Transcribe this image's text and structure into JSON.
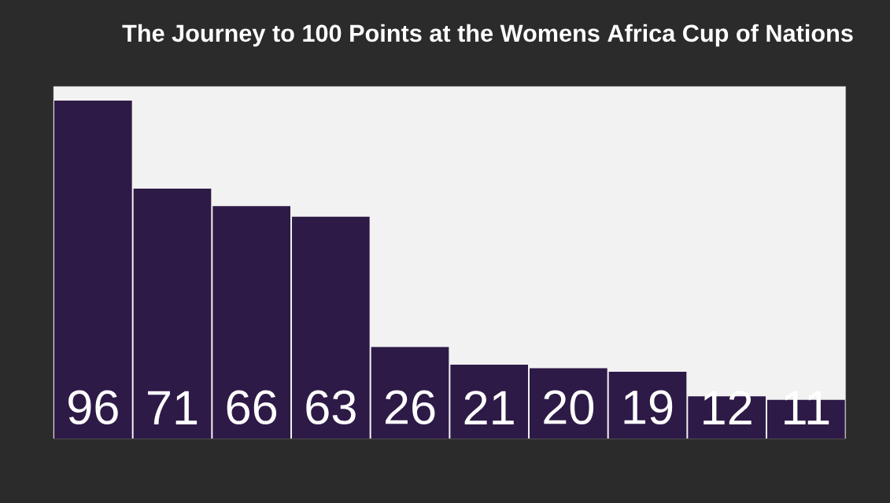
{
  "chart_data": {
    "type": "bar",
    "title": "The Journey to **100 Points** at the Womens Africa Cup of Nations",
    "categories": [
      null,
      null,
      null,
      null,
      null,
      null,
      null,
      null,
      null,
      null
    ],
    "values": [
      96,
      71,
      66,
      63,
      26,
      21,
      20,
      19,
      12,
      11
    ],
    "color": "#2e1a47",
    "ylim": [
      0,
      100
    ],
    "data_labels": true,
    "tick_labels": false
  }
}
